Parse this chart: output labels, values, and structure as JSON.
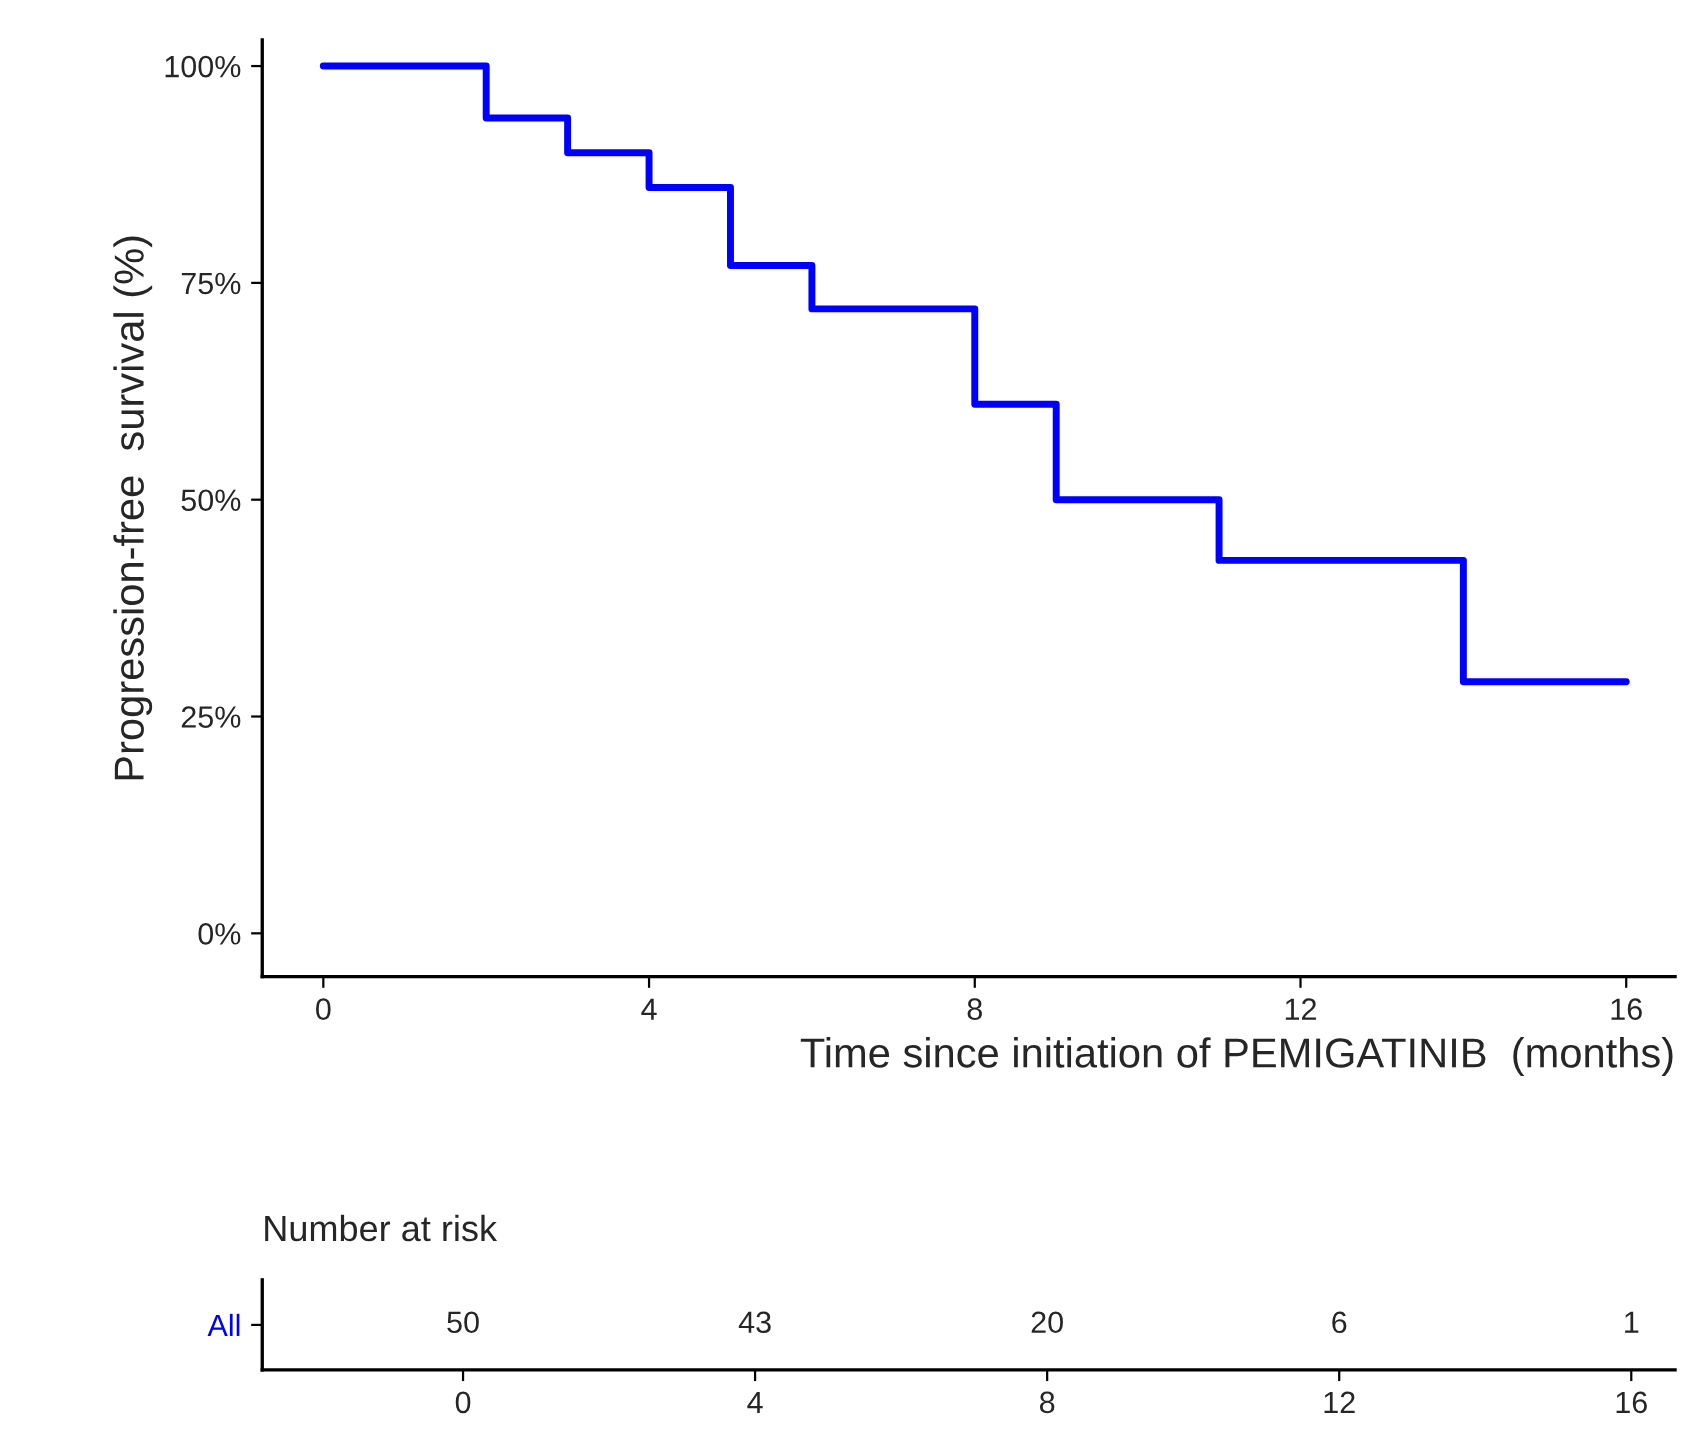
{
  "chart_data": [
    {
      "type": "step",
      "xlabel": "Time since initiation of PEMIGATINIB  (months)",
      "ylabel": "Progression-free  survival (%)",
      "x": [
        0,
        2,
        3,
        4,
        5,
        6,
        8,
        9,
        11,
        14,
        16
      ],
      "series": [
        {
          "color": "#0000ff",
          "values": [
            100,
            94,
            90,
            86,
            77,
            72,
            61,
            50,
            43,
            29,
            29
          ]
        }
      ],
      "xlim": [
        -0.75,
        16.6
      ],
      "xticks": [
        0,
        4,
        8,
        12,
        16
      ],
      "ylim": [
        -5,
        103
      ],
      "yticks": [
        {
          "value": 0,
          "label": "0%"
        },
        {
          "value": 25,
          "label": "25%"
        },
        {
          "value": 50,
          "label": "50%"
        },
        {
          "value": 75,
          "label": "75%"
        },
        {
          "value": 100,
          "label": "100%"
        }
      ],
      "grid": false
    },
    {
      "type": "heatmap",
      "title": "Number at risk",
      "categories": [
        "0",
        "4",
        "8",
        "12",
        "16"
      ],
      "y_categories": [
        "All"
      ],
      "cells": [
        [
          50,
          43,
          20,
          6,
          1
        ]
      ],
      "data_labels": true
    }
  ]
}
